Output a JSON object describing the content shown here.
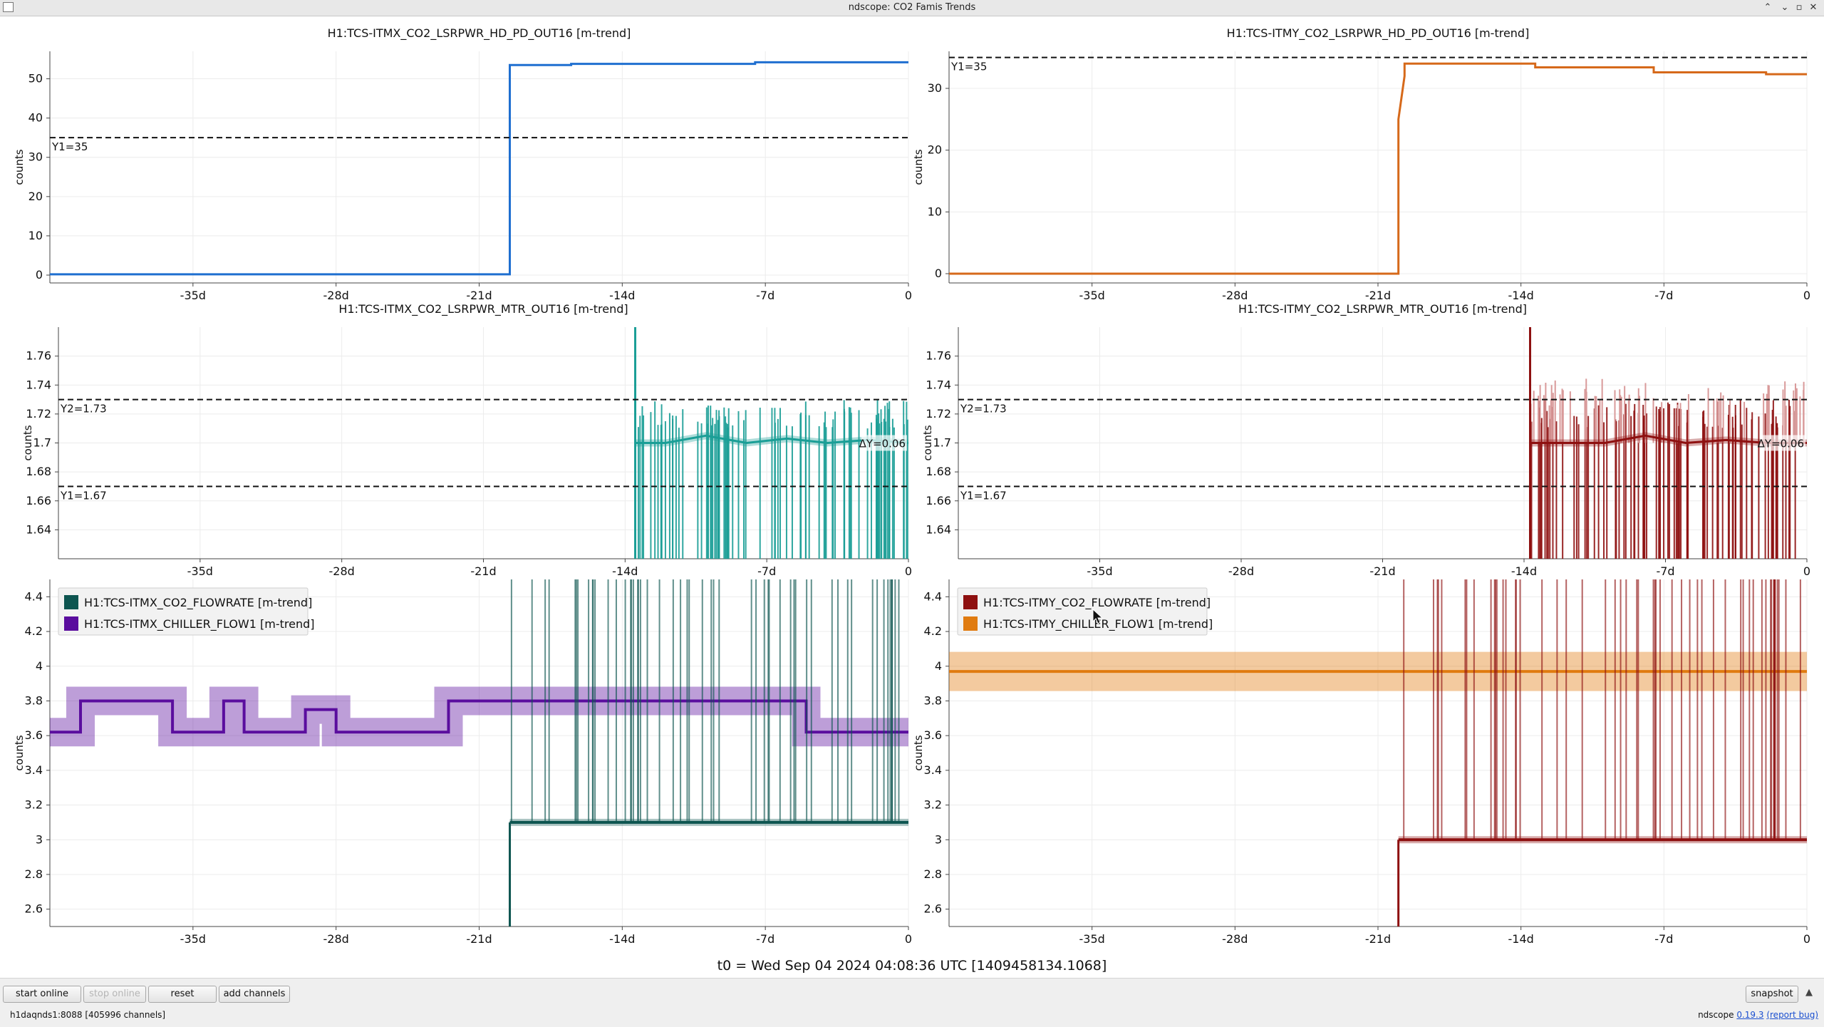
{
  "window": {
    "title": "ndscope: CO2 Famis Trends",
    "controls": [
      "⌃",
      "⌄",
      "▫",
      "✕"
    ]
  },
  "tick_labels_x": [
    "-35d",
    "-28d",
    "-21d",
    "-14d",
    "-7d",
    "0"
  ],
  "y_axis_label": "counts",
  "colors": {
    "itmx_pd": "#1f6fd0",
    "itmy_pd": "#d6691a",
    "itmx_mtr": "#1a9e96",
    "itmy_mtr": "#8e1010",
    "itmx_flow": "#0d5550",
    "itmx_chiller": "#5a0d9e",
    "itmy_flow": "#8e1010",
    "itmy_chiller": "#e07b10"
  },
  "plots": [
    {
      "id": "itmx_pd",
      "title": "H1:TCS-ITMX_CO2_LSRPWR_HD_PD_OUT16 [m-trend]",
      "y_ticks": [
        "0",
        "10",
        "20",
        "30",
        "40",
        "50"
      ],
      "cursors": [
        {
          "label": "Y1=35",
          "value": 35
        }
      ]
    },
    {
      "id": "itmy_pd",
      "title": "H1:TCS-ITMY_CO2_LSRPWR_HD_PD_OUT16 [m-trend]",
      "y_ticks": [
        "0",
        "10",
        "20",
        "30"
      ],
      "cursors": [
        {
          "label": "Y1=35",
          "value": 35
        }
      ]
    },
    {
      "id": "itmx_mtr",
      "title": "H1:TCS-ITMX_CO2_LSRPWR_MTR_OUT16 [m-trend]",
      "y_ticks": [
        "1.64",
        "1.66",
        "1.68",
        "1.7",
        "1.72",
        "1.74",
        "1.76"
      ],
      "cursors": [
        {
          "label": "Y2=1.73",
          "value": 1.73
        },
        {
          "label": "Y1=1.67",
          "value": 1.67
        }
      ],
      "delta_label": "ΔY=0.06"
    },
    {
      "id": "itmy_mtr",
      "title": "H1:TCS-ITMY_CO2_LSRPWR_MTR_OUT16 [m-trend]",
      "y_ticks": [
        "1.64",
        "1.66",
        "1.68",
        "1.7",
        "1.72",
        "1.74",
        "1.76"
      ],
      "cursors": [
        {
          "label": "Y2=1.73",
          "value": 1.73
        },
        {
          "label": "Y1=1.67",
          "value": 1.67
        }
      ],
      "delta_label": "ΔY=0.06"
    },
    {
      "id": "itmx_flow",
      "title": "",
      "y_ticks": [
        "2.6",
        "2.8",
        "3",
        "3.2",
        "3.4",
        "3.6",
        "3.8",
        "4",
        "4.2",
        "4.4"
      ],
      "legend": [
        "H1:TCS-ITMX_CO2_FLOWRATE [m-trend]",
        "H1:TCS-ITMX_CHILLER_FLOW1 [m-trend]"
      ]
    },
    {
      "id": "itmy_flow",
      "title": "",
      "y_ticks": [
        "2.6",
        "2.8",
        "3",
        "3.2",
        "3.4",
        "3.6",
        "3.8",
        "4",
        "4.2",
        "4.4"
      ],
      "legend": [
        "H1:TCS-ITMY_CO2_FLOWRATE [m-trend]",
        "H1:TCS-ITMY_CHILLER_FLOW1 [m-trend]"
      ]
    }
  ],
  "t0_label": "t0 = Wed Sep 04 2024 04:08:36 UTC [1409458134.1068]",
  "buttons": {
    "start_online": "start online",
    "stop_online": "stop online",
    "reset": "reset",
    "add_channels": "add channels",
    "snapshot": "snapshot"
  },
  "status": {
    "server": "h1daqnds1:8088",
    "channels": "[405996 channels]",
    "version_prefix": "ndscope",
    "version": "0.19.3",
    "report_bug": "(report bug)"
  },
  "chart_data": [
    {
      "type": "line",
      "title": "H1:TCS-ITMX_CO2_LSRPWR_HD_PD_OUT16 [m-trend]",
      "ylabel": "counts",
      "x_unit": "days relative to t0",
      "ylim": [
        -2,
        57
      ],
      "xlim": [
        -42,
        0
      ],
      "series": [
        {
          "name": "H1:TCS-ITMX_CO2_LSRPWR_HD_PD_OUT16 [m-trend]",
          "x": [
            -42,
            -19.5,
            -19.5,
            -16.5,
            -16.5,
            -7.5,
            -7.5,
            0
          ],
          "y": [
            0.2,
            0.2,
            53.5,
            53.5,
            53.8,
            53.8,
            54.2,
            54.2
          ]
        }
      ],
      "cursors": [
        {
          "label": "Y1=35",
          "y": 35
        }
      ]
    },
    {
      "type": "line",
      "title": "H1:TCS-ITMY_CO2_LSRPWR_HD_PD_OUT16 [m-trend]",
      "ylabel": "counts",
      "x_unit": "days relative to t0",
      "ylim": [
        -1.5,
        36
      ],
      "xlim": [
        -42,
        0
      ],
      "series": [
        {
          "name": "H1:TCS-ITMY_CO2_LSRPWR_HD_PD_OUT16 [m-trend]",
          "x": [
            -42,
            -20,
            -20,
            -19.7,
            -19.7,
            -13.3,
            -13.3,
            -7.5,
            -7.5,
            -2,
            -2,
            0
          ],
          "y": [
            0,
            0,
            25,
            32,
            34,
            34,
            33.4,
            33.4,
            32.6,
            32.6,
            32.3,
            32.3
          ]
        }
      ],
      "cursors": [
        {
          "label": "Y1=35",
          "y": 35
        }
      ]
    },
    {
      "type": "line",
      "title": "H1:TCS-ITMX_CO2_LSRPWR_MTR_OUT16 [m-trend]",
      "ylabel": "counts",
      "x_unit": "days relative to t0",
      "ylim": [
        1.62,
        1.78
      ],
      "xlim": [
        -42,
        0
      ],
      "series": [
        {
          "name": "H1:TCS-ITMX_CO2_LSRPWR_MTR_OUT16 [m-trend]",
          "x": [
            -13.5,
            -12,
            -10,
            -8,
            -6,
            -4,
            -2,
            0
          ],
          "y": [
            1.7,
            1.7,
            1.705,
            1.7,
            1.703,
            1.7,
            1.702,
            1.7
          ],
          "note": "data starts at -14d, frequent dropouts below 1.62"
        }
      ],
      "cursors": [
        {
          "label": "Y2=1.73",
          "y": 1.73
        },
        {
          "label": "Y1=1.67",
          "y": 1.67
        }
      ],
      "delta": "ΔY=0.06"
    },
    {
      "type": "line",
      "title": "H1:TCS-ITMY_CO2_LSRPWR_MTR_OUT16 [m-trend]",
      "ylabel": "counts",
      "x_unit": "days relative to t0",
      "ylim": [
        1.62,
        1.78
      ],
      "xlim": [
        -42,
        0
      ],
      "series": [
        {
          "name": "H1:TCS-ITMY_CO2_LSRPWR_MTR_OUT16 [m-trend]",
          "x": [
            -13.7,
            -12,
            -10,
            -8,
            -6,
            -4,
            -2,
            0
          ],
          "y": [
            1.7,
            1.7,
            1.7,
            1.705,
            1.7,
            1.702,
            1.7,
            1.7
          ],
          "note": "data starts at -14d, frequent dropouts below 1.62"
        }
      ],
      "cursors": [
        {
          "label": "Y2=1.73",
          "y": 1.73
        },
        {
          "label": "Y1=1.67",
          "y": 1.67
        }
      ],
      "delta": "ΔY=0.06"
    },
    {
      "type": "line",
      "ylabel": "counts",
      "x_unit": "days relative to t0",
      "ylim": [
        2.5,
        4.5
      ],
      "xlim": [
        -42,
        0
      ],
      "series": [
        {
          "name": "H1:TCS-ITMX_CO2_FLOWRATE [m-trend]",
          "x": [
            -19.5,
            -19.5,
            -10,
            0
          ],
          "y": [
            2.5,
            3.1,
            3.1,
            3.1
          ]
        },
        {
          "name": "H1:TCS-ITMX_CHILLER_FLOW1 [m-trend]",
          "x": [
            -42,
            -40.5,
            -40.5,
            -36,
            -36,
            -33.5,
            -33.5,
            -32.5,
            -32.5,
            -29.5,
            -29.5,
            -28,
            -28,
            -22.5,
            -22.5,
            -5,
            -5,
            0
          ],
          "y": [
            3.62,
            3.62,
            3.8,
            3.8,
            3.62,
            3.62,
            3.8,
            3.8,
            3.62,
            3.62,
            3.75,
            3.75,
            3.62,
            3.62,
            3.8,
            3.8,
            3.62,
            3.62
          ]
        }
      ]
    },
    {
      "type": "line",
      "ylabel": "counts",
      "x_unit": "days relative to t0",
      "ylim": [
        2.5,
        4.5
      ],
      "xlim": [
        -42,
        0
      ],
      "series": [
        {
          "name": "H1:TCS-ITMY_CO2_FLOWRATE [m-trend]",
          "x": [
            -20,
            -20,
            -10,
            0
          ],
          "y": [
            2.5,
            3.0,
            3.0,
            3.0
          ]
        },
        {
          "name": "H1:TCS-ITMY_CHILLER_FLOW1 [m-trend]",
          "x": [
            -42,
            -21,
            0
          ],
          "y": [
            3.97,
            3.97,
            3.97
          ]
        }
      ]
    }
  ]
}
